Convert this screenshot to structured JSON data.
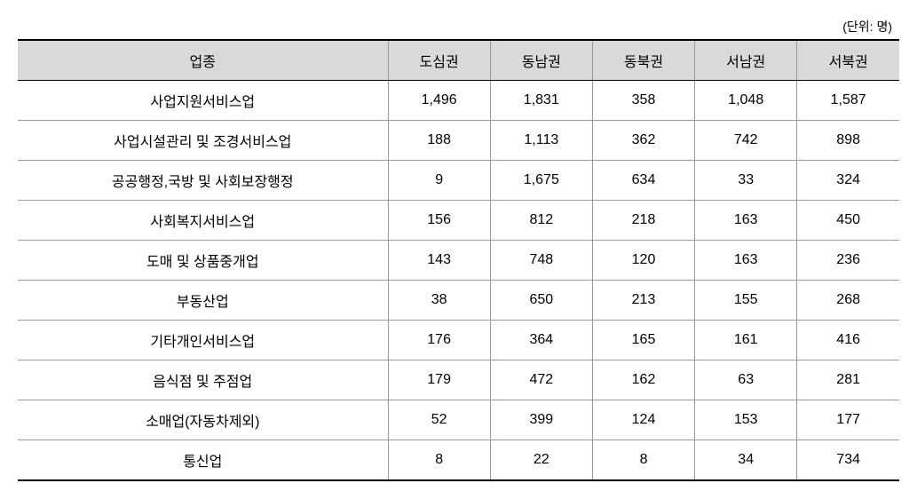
{
  "table": {
    "type": "table",
    "unit_label": "(단위: 명)",
    "background_color": "#ffffff",
    "header_bg_color": "#d9d9d9",
    "border_color_strong": "#000000",
    "border_color_light": "#999999",
    "text_color": "#000000",
    "header_fontsize": 16,
    "cell_fontsize": 16,
    "unit_fontsize": 14,
    "columns": [
      {
        "label": "업종",
        "width": "42%",
        "align": "center"
      },
      {
        "label": "도심권",
        "width": "11.6%",
        "align": "center"
      },
      {
        "label": "동남권",
        "width": "11.6%",
        "align": "center"
      },
      {
        "label": "동북권",
        "width": "11.6%",
        "align": "center"
      },
      {
        "label": "서남권",
        "width": "11.6%",
        "align": "center"
      },
      {
        "label": "서북권",
        "width": "11.6%",
        "align": "center"
      }
    ],
    "rows": [
      {
        "category": "사업지원서비스업",
        "values": [
          "1,496",
          "1,831",
          "358",
          "1,048",
          "1,587"
        ]
      },
      {
        "category": "사업시설관리 및 조경서비스업",
        "values": [
          "188",
          "1,113",
          "362",
          "742",
          "898"
        ]
      },
      {
        "category": "공공행정,국방 및 사회보장행정",
        "values": [
          "9",
          "1,675",
          "634",
          "33",
          "324"
        ]
      },
      {
        "category": "사회복지서비스업",
        "values": [
          "156",
          "812",
          "218",
          "163",
          "450"
        ]
      },
      {
        "category": "도매 및 상품중개업",
        "values": [
          "143",
          "748",
          "120",
          "163",
          "236"
        ]
      },
      {
        "category": "부동산업",
        "values": [
          "38",
          "650",
          "213",
          "155",
          "268"
        ]
      },
      {
        "category": "기타개인서비스업",
        "values": [
          "176",
          "364",
          "165",
          "161",
          "416"
        ]
      },
      {
        "category": "음식점 및 주점업",
        "values": [
          "179",
          "472",
          "162",
          "63",
          "281"
        ]
      },
      {
        "category": "소매업(자동차제외)",
        "values": [
          "52",
          "399",
          "124",
          "153",
          "177"
        ]
      },
      {
        "category": "통신업",
        "values": [
          "8",
          "22",
          "8",
          "34",
          "734"
        ]
      }
    ]
  }
}
